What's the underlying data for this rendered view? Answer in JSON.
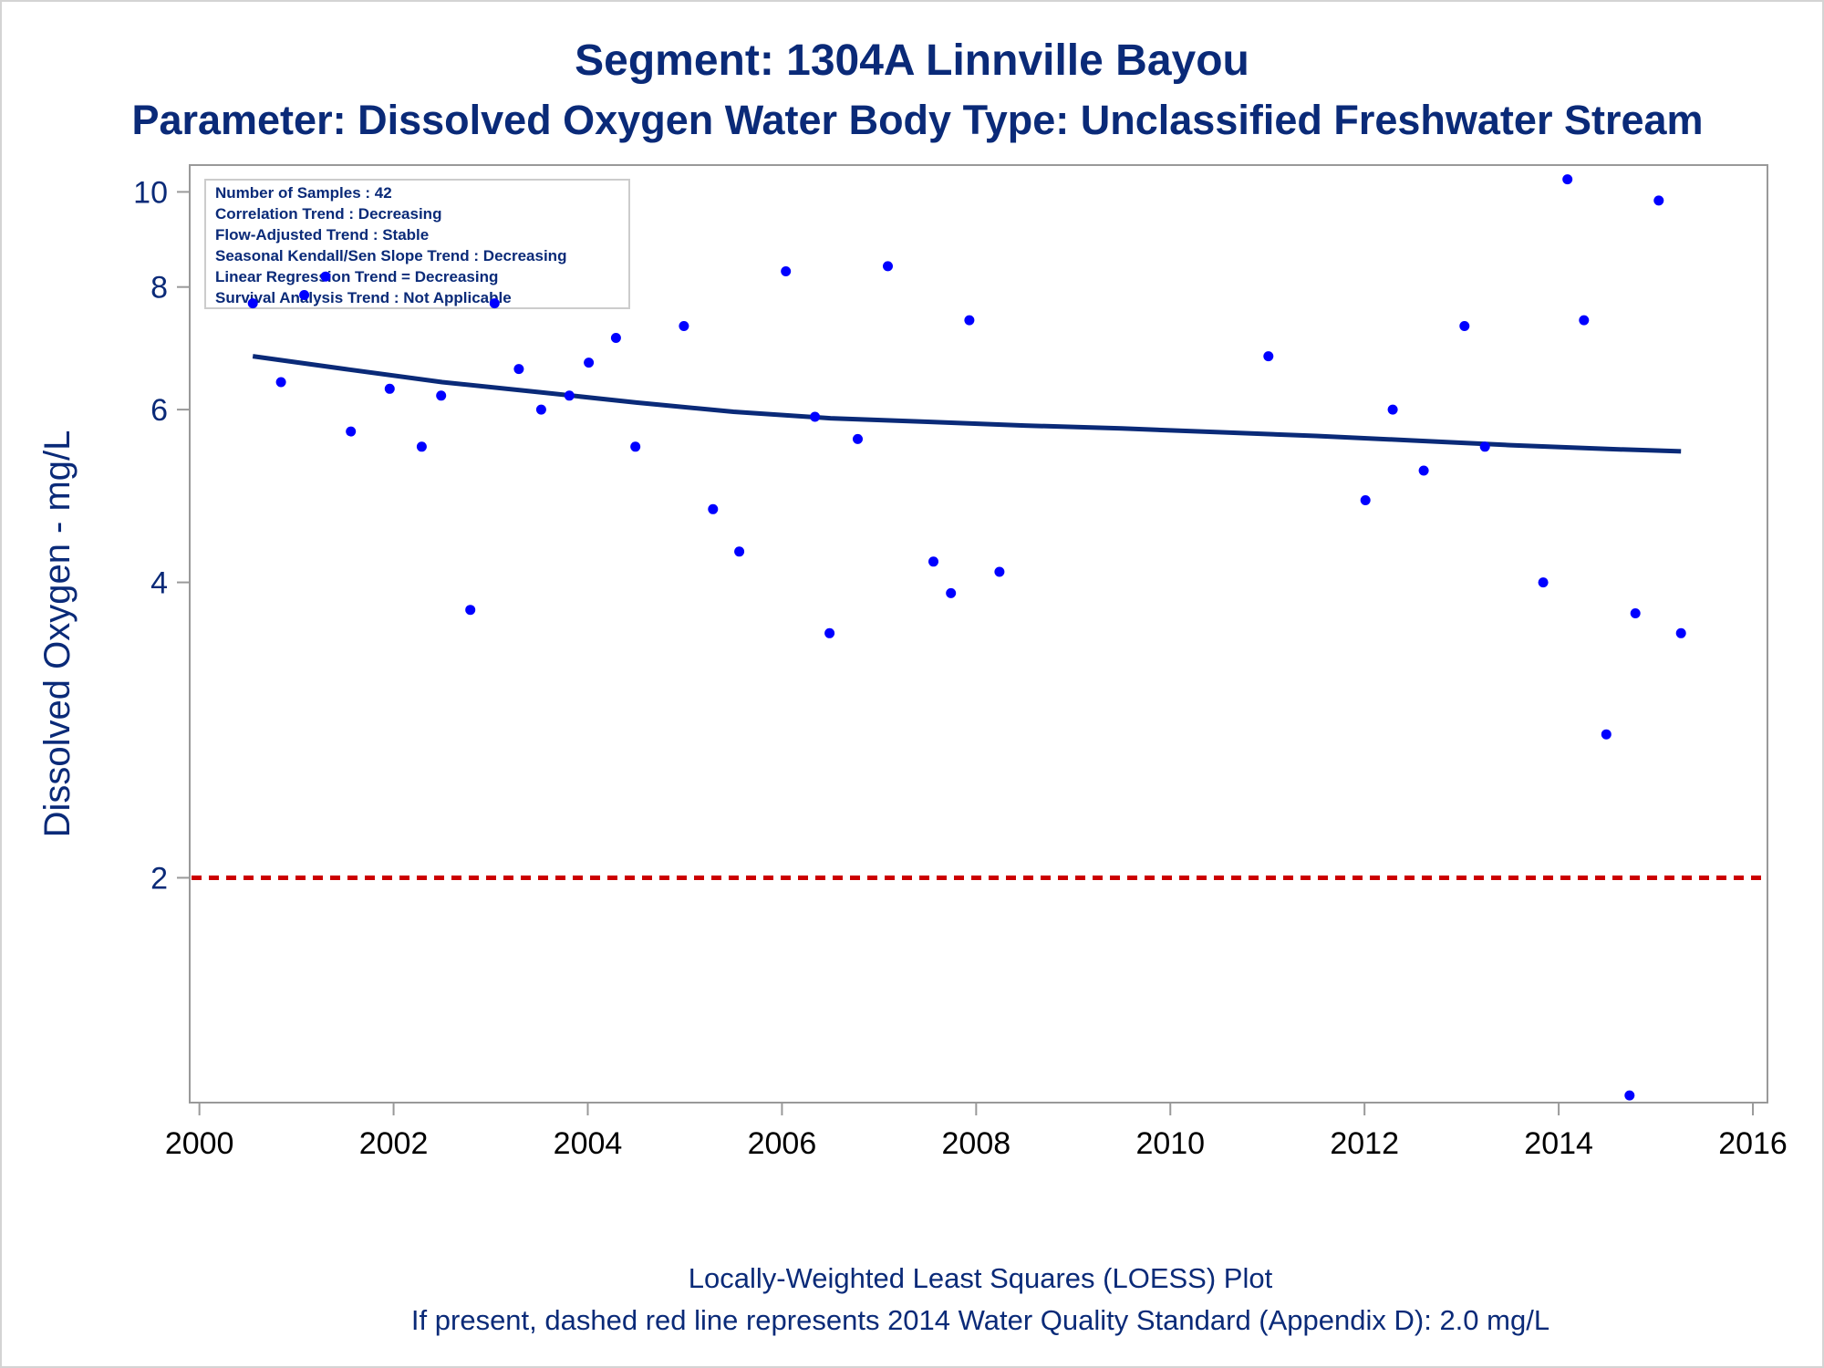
{
  "chart_data": {
    "type": "scatter",
    "title": "Segment: 1304A  Linnville Bayou",
    "subtitle": "Parameter: Dissolved Oxygen   Water Body Type: Unclassified Freshwater Stream",
    "ylabel": "Dissolved Oxygen - mg/L",
    "xlabel": "",
    "x_scale": "linear",
    "y_scale": "log",
    "xlim": [
      1999.9,
      2016.15
    ],
    "ylim": [
      1.18,
      10.65
    ],
    "x_ticks": [
      "2000",
      "2002",
      "2004",
      "2006",
      "2008",
      "2010",
      "2012",
      "2014",
      "2016"
    ],
    "y_ticks": [
      "2",
      "4",
      "6",
      "8",
      "10"
    ],
    "info_box": [
      "Number of Samples : 42",
      "Correlation Trend : Decreasing",
      "Flow-Adjusted Trend : Stable",
      "Seasonal Kendall/Sen Slope Trend : Decreasing",
      "Linear Regression Trend = Decreasing",
      "Survival Analysis Trend : Not Applicable"
    ],
    "legend_position": "top-left",
    "grid": false,
    "colors": {
      "points": "#0000ff",
      "trend": "#0a2a78",
      "standard": "#cc0000",
      "text": "#0a2a78"
    },
    "series": [
      {
        "values": [
          {
            "x": 2000.55,
            "y": 7.7
          },
          {
            "x": 2000.84,
            "y": 6.4
          },
          {
            "x": 2001.08,
            "y": 7.85
          },
          {
            "x": 2001.3,
            "y": 8.2
          },
          {
            "x": 2001.56,
            "y": 5.7
          },
          {
            "x": 2001.96,
            "y": 6.3
          },
          {
            "x": 2002.29,
            "y": 5.5
          },
          {
            "x": 2002.49,
            "y": 6.2
          },
          {
            "x": 2002.79,
            "y": 3.75
          },
          {
            "x": 2003.04,
            "y": 7.7
          },
          {
            "x": 2003.29,
            "y": 6.6
          },
          {
            "x": 2003.52,
            "y": 6.0
          },
          {
            "x": 2003.81,
            "y": 6.2
          },
          {
            "x": 2004.01,
            "y": 6.7
          },
          {
            "x": 2004.29,
            "y": 7.1
          },
          {
            "x": 2004.49,
            "y": 5.5
          },
          {
            "x": 2004.99,
            "y": 7.3
          },
          {
            "x": 2005.29,
            "y": 4.75
          },
          {
            "x": 2005.56,
            "y": 4.3
          },
          {
            "x": 2006.04,
            "y": 8.3
          },
          {
            "x": 2006.34,
            "y": 5.9
          },
          {
            "x": 2006.49,
            "y": 3.55
          },
          {
            "x": 2006.78,
            "y": 5.6
          },
          {
            "x": 2007.09,
            "y": 8.4
          },
          {
            "x": 2007.56,
            "y": 4.2
          },
          {
            "x": 2007.74,
            "y": 3.9
          },
          {
            "x": 2007.93,
            "y": 7.4
          },
          {
            "x": 2008.24,
            "y": 4.1
          },
          {
            "x": 2011.01,
            "y": 6.8
          },
          {
            "x": 2012.01,
            "y": 4.85
          },
          {
            "x": 2012.29,
            "y": 6.0
          },
          {
            "x": 2012.61,
            "y": 5.2
          },
          {
            "x": 2013.03,
            "y": 7.3
          },
          {
            "x": 2013.24,
            "y": 5.5
          },
          {
            "x": 2013.84,
            "y": 4.0
          },
          {
            "x": 2014.09,
            "y": 10.3
          },
          {
            "x": 2014.26,
            "y": 7.4
          },
          {
            "x": 2014.49,
            "y": 2.8
          },
          {
            "x": 2014.73,
            "y": 1.2
          },
          {
            "x": 2014.79,
            "y": 3.72
          },
          {
            "x": 2015.03,
            "y": 9.8
          },
          {
            "x": 2015.26,
            "y": 3.55
          }
        ]
      }
    ],
    "trend_line": {
      "type": "line",
      "values": [
        {
          "x": 2000.55,
          "y": 6.8
        },
        {
          "x": 2001.5,
          "y": 6.6
        },
        {
          "x": 2002.5,
          "y": 6.4
        },
        {
          "x": 2003.5,
          "y": 6.25
        },
        {
          "x": 2004.5,
          "y": 6.1
        },
        {
          "x": 2005.5,
          "y": 5.97
        },
        {
          "x": 2006.5,
          "y": 5.88
        },
        {
          "x": 2007.5,
          "y": 5.83
        },
        {
          "x": 2008.5,
          "y": 5.78
        },
        {
          "x": 2009.5,
          "y": 5.74
        },
        {
          "x": 2010.5,
          "y": 5.69
        },
        {
          "x": 2011.5,
          "y": 5.64
        },
        {
          "x": 2012.5,
          "y": 5.58
        },
        {
          "x": 2013.5,
          "y": 5.52
        },
        {
          "x": 2014.5,
          "y": 5.47
        },
        {
          "x": 2015.26,
          "y": 5.44
        }
      ]
    },
    "reference_line": {
      "type": "dashed",
      "y": 2.0
    },
    "footnotes": [
      "Locally-Weighted Least Squares (LOESS) Plot",
      "If present, dashed red line represents 2014 Water Quality Standard (Appendix D): 2.0 mg/L"
    ]
  }
}
